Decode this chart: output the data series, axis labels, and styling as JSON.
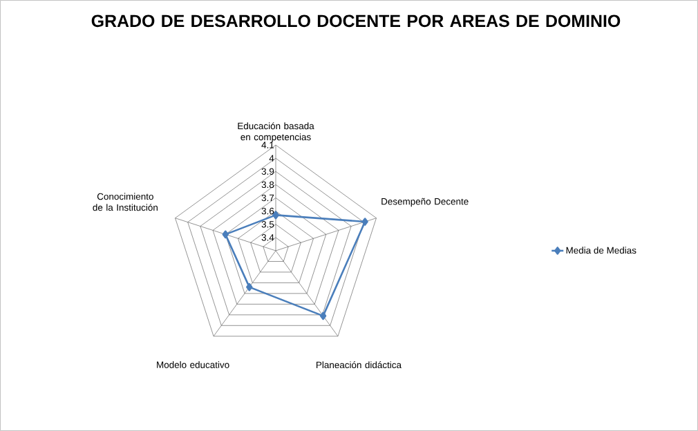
{
  "chart_data": {
    "type": "radar",
    "title": "GRADO DE DESARROLLO DOCENTE POR AREAS DE DOMINIO",
    "categories": [
      "Educación basada en competencias",
      "Desempeño Decente",
      "Planeación didáctica",
      "Modelo educativo",
      "Conocimiento de la Institución"
    ],
    "series": [
      {
        "name": "Media de Medias",
        "color": "#4a7ebb",
        "values": [
          3.57,
          4.01,
          3.91,
          3.64,
          3.7
        ]
      }
    ],
    "ylim": [
      3.3,
      4.1
    ],
    "yticks": [
      3.4,
      3.5,
      3.6,
      3.7,
      3.8,
      3.9,
      4,
      4.1
    ],
    "grid": true,
    "legend": "right",
    "marker": "diamond",
    "line_style": "solid"
  }
}
